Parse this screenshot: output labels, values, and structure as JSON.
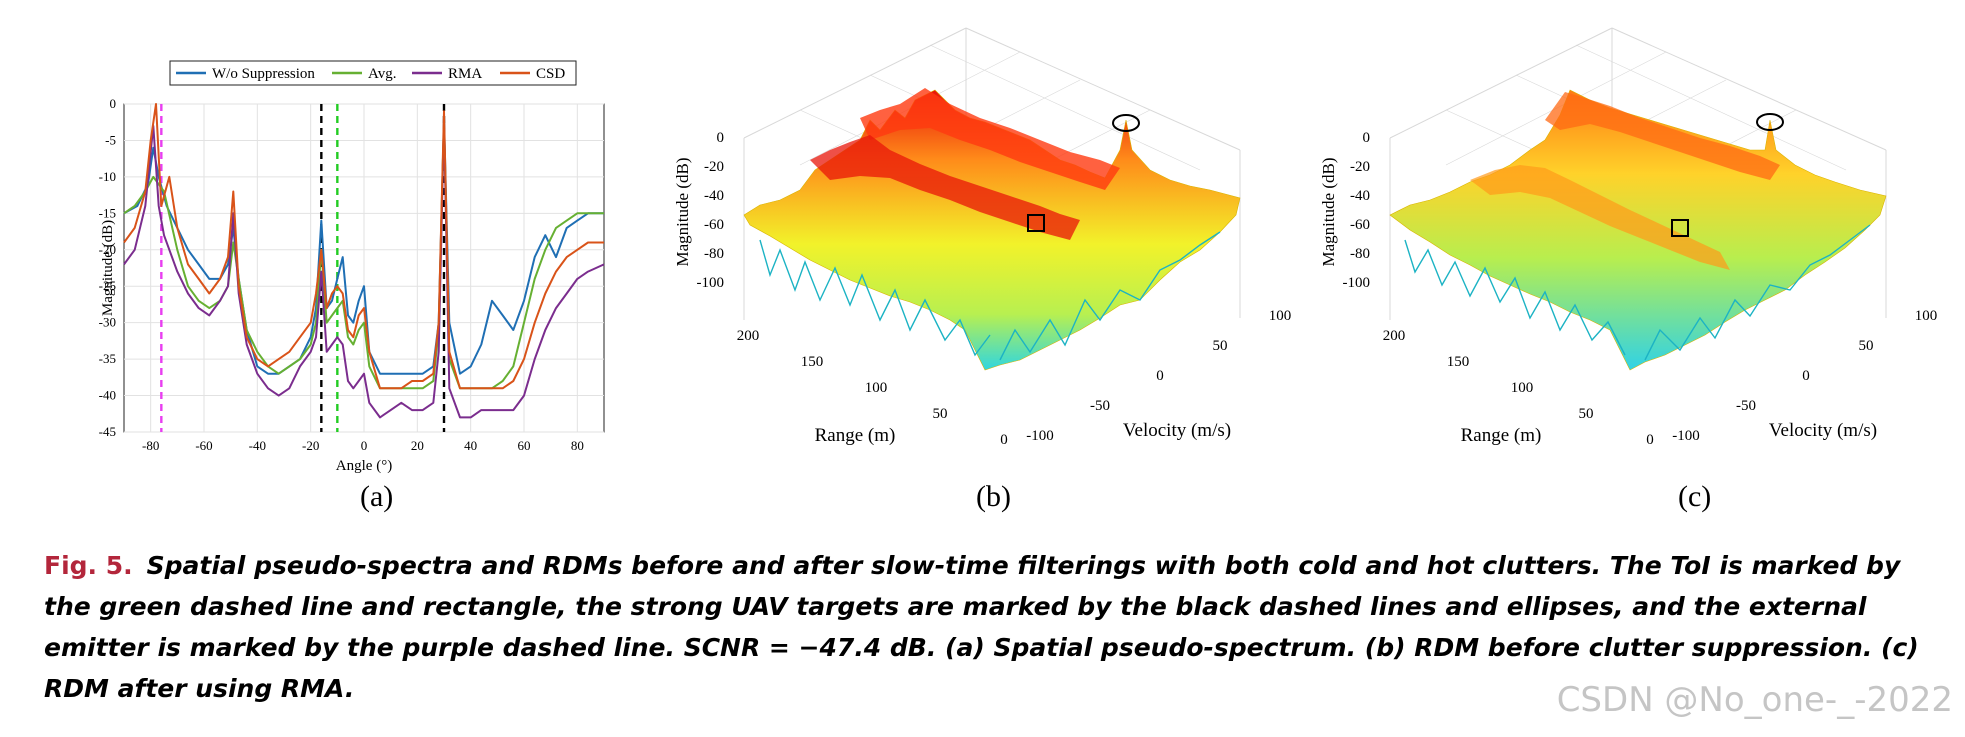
{
  "panels": {
    "a": {
      "label": "(a)"
    },
    "b": {
      "label": "(b)"
    },
    "c": {
      "label": "(c)"
    }
  },
  "chart_data": [
    {
      "type": "line",
      "legend": [
        "W/o Suppression",
        "Avg.",
        "RMA",
        "CSD"
      ],
      "legend_placement": "top",
      "xlabel": "Angle (°)",
      "ylabel": "Magnitude (dB)",
      "xlim": [
        -90,
        90
      ],
      "ylim": [
        -45,
        0
      ],
      "xticks": [
        "-80",
        "-60",
        "-40",
        "-20",
        "0",
        "20",
        "40",
        "60",
        "80"
      ],
      "yticks": [
        "0",
        "-5",
        "-10",
        "-15",
        "-20",
        "-25",
        "-30",
        "-35",
        "-40",
        "-45"
      ],
      "grid": true,
      "vlines": [
        {
          "x": -76,
          "color": "#e83ef0",
          "style": "dashed"
        },
        {
          "x": -16,
          "color": "#000000",
          "style": "dashed"
        },
        {
          "x": -10,
          "color": "#22cc22",
          "style": "dashed"
        },
        {
          "x": 30,
          "color": "#000000",
          "style": "dashed"
        }
      ],
      "series": [
        {
          "name": "W/o Suppression",
          "color": "#1f6fb4",
          "x": [
            -90,
            -85,
            -81,
            -79,
            -77,
            -74,
            -70,
            -66,
            -62,
            -58,
            -54,
            -51,
            -49,
            -47,
            -44,
            -40,
            -36,
            -32,
            -28,
            -24,
            -20,
            -18,
            -16,
            -14,
            -12,
            -10,
            -8,
            -6,
            -4,
            -2,
            0,
            2,
            6,
            10,
            14,
            18,
            22,
            26,
            28,
            30,
            32,
            36,
            40,
            44,
            48,
            52,
            56,
            60,
            64,
            68,
            72,
            76,
            80,
            84,
            90
          ],
          "y": [
            -15,
            -14,
            -11,
            -6,
            -10,
            -14,
            -17,
            -20,
            -22,
            -24,
            -24,
            -22,
            -17,
            -24,
            -31,
            -36,
            -37,
            -37,
            -36,
            -35,
            -32,
            -28,
            -16,
            -28,
            -27,
            -24,
            -21,
            -29,
            -30,
            -27,
            -25,
            -34,
            -37,
            -37,
            -37,
            -37,
            -37,
            -36,
            -30,
            -2,
            -30,
            -37,
            -36,
            -33,
            -27,
            -29,
            -31,
            -27,
            -21,
            -18,
            -21,
            -17,
            -16,
            -15,
            -15
          ]
        },
        {
          "name": "Avg.",
          "color": "#66b032",
          "x": [
            -90,
            -86,
            -82,
            -79,
            -77,
            -75,
            -70,
            -66,
            -62,
            -58,
            -54,
            -51,
            -49,
            -47,
            -44,
            -40,
            -36,
            -32,
            -28,
            -24,
            -20,
            -18,
            -16,
            -14,
            -12,
            -10,
            -8,
            -6,
            -4,
            -2,
            0,
            2,
            6,
            10,
            14,
            18,
            22,
            26,
            28,
            30,
            32,
            36,
            40,
            44,
            48,
            52,
            56,
            60,
            64,
            68,
            72,
            76,
            80,
            84,
            90
          ],
          "y": [
            -15,
            -14,
            -12,
            -10,
            -11,
            -12,
            -20,
            -25,
            -27,
            -28,
            -27,
            -25,
            -19,
            -24,
            -31,
            -34,
            -36,
            -37,
            -36,
            -35,
            -33,
            -30,
            -20,
            -30,
            -29,
            -28,
            -27,
            -32,
            -33,
            -31,
            -30,
            -36,
            -39,
            -39,
            -39,
            -39,
            -39,
            -38,
            -31,
            -2,
            -35,
            -39,
            -39,
            -39,
            -39,
            -38,
            -36,
            -30,
            -24,
            -20,
            -17,
            -16,
            -15,
            -15,
            -15
          ]
        },
        {
          "name": "RMA",
          "color": "#7b2d8e",
          "x": [
            -90,
            -86,
            -82,
            -79,
            -77,
            -75,
            -70,
            -66,
            -62,
            -58,
            -54,
            -51,
            -49,
            -47,
            -44,
            -40,
            -36,
            -32,
            -28,
            -24,
            -20,
            -18,
            -16,
            -14,
            -12,
            -10,
            -8,
            -6,
            -4,
            -2,
            0,
            2,
            6,
            10,
            14,
            18,
            22,
            26,
            28,
            30,
            32,
            36,
            40,
            44,
            48,
            52,
            56,
            60,
            64,
            68,
            72,
            76,
            80,
            84,
            90
          ],
          "y": [
            -22,
            -20,
            -14,
            -3,
            -14,
            -18,
            -23,
            -26,
            -28,
            -29,
            -27,
            -25,
            -15,
            -26,
            -33,
            -37,
            -39,
            -40,
            -39,
            -36,
            -34,
            -32,
            -23,
            -34,
            -33,
            -32,
            -33,
            -38,
            -39,
            -38,
            -37,
            -41,
            -43,
            -42,
            -41,
            -42,
            -42,
            -41,
            -34,
            -2,
            -39,
            -43,
            -43,
            -42,
            -42,
            -42,
            -42,
            -40,
            -35,
            -31,
            -28,
            -26,
            -24,
            -23,
            -22
          ]
        },
        {
          "name": "CSD",
          "color": "#d95319",
          "x": [
            -90,
            -86,
            -82,
            -80,
            -78,
            -76,
            -73,
            -70,
            -66,
            -62,
            -58,
            -54,
            -51,
            -49,
            -47,
            -44,
            -40,
            -36,
            -32,
            -28,
            -24,
            -20,
            -18,
            -16,
            -14,
            -12,
            -10,
            -8,
            -6,
            -4,
            -2,
            0,
            2,
            6,
            10,
            14,
            18,
            22,
            26,
            28,
            30,
            32,
            36,
            40,
            44,
            48,
            52,
            56,
            60,
            64,
            68,
            72,
            76,
            80,
            84,
            90
          ],
          "y": [
            -19,
            -17,
            -12,
            -5,
            0,
            -14,
            -10,
            -17,
            -22,
            -24,
            -26,
            -24,
            -21,
            -12,
            -25,
            -32,
            -35,
            -36,
            -35,
            -34,
            -32,
            -30,
            -26,
            -20,
            -28,
            -26,
            -25,
            -26,
            -31,
            -32,
            -29,
            -28,
            -34,
            -39,
            -39,
            -39,
            -38,
            -38,
            -37,
            -30,
            -1,
            -34,
            -39,
            -39,
            -39,
            -39,
            -39,
            -38,
            -35,
            -30,
            -26,
            -23,
            -21,
            -20,
            -19,
            -19
          ]
        }
      ]
    },
    {
      "type": "surface",
      "xlabel": "Range (m)",
      "ylabel": "Velocity (m/s)",
      "zlabel": "Magnitude (dB)",
      "x_ticks": [
        "200",
        "150",
        "100",
        "50",
        "0"
      ],
      "y_ticks": [
        "-100",
        "-50",
        "0",
        "50",
        "100"
      ],
      "z_ticks": [
        "0",
        "-20",
        "-40",
        "-60",
        "-80",
        "-100"
      ],
      "xlim": [
        0,
        200
      ],
      "ylim": [
        -100,
        100
      ],
      "zlim": [
        -100,
        0
      ]
    },
    {
      "type": "surface",
      "xlabel": "Range (m)",
      "ylabel": "Velocity (m/s)",
      "zlabel": "Magnitude (dB)",
      "x_ticks": [
        "200",
        "150",
        "100",
        "50",
        "0"
      ],
      "y_ticks": [
        "-100",
        "-50",
        "0",
        "50",
        "100"
      ],
      "z_ticks": [
        "0",
        "-20",
        "-40",
        "-60",
        "-80",
        "-100"
      ],
      "xlim": [
        0,
        200
      ],
      "ylim": [
        -100,
        100
      ],
      "zlim": [
        -100,
        0
      ]
    }
  ],
  "caption": {
    "label": "Fig. 5.",
    "text": "Spatial pseudo-spectra and RDMs before and after slow-time filterings with both cold and hot clutters. The ToI is marked by the green dashed line and rectangle, the strong UAV targets are marked by the black dashed lines and ellipses, and the external emitter is marked by the purple dashed line. SCNR = −47.4 dB. (a) Spatial pseudo-spectrum. (b) RDM before clutter suppression. (c) RDM after using RMA."
  },
  "watermark": "CSDN @No_one-_-2022"
}
